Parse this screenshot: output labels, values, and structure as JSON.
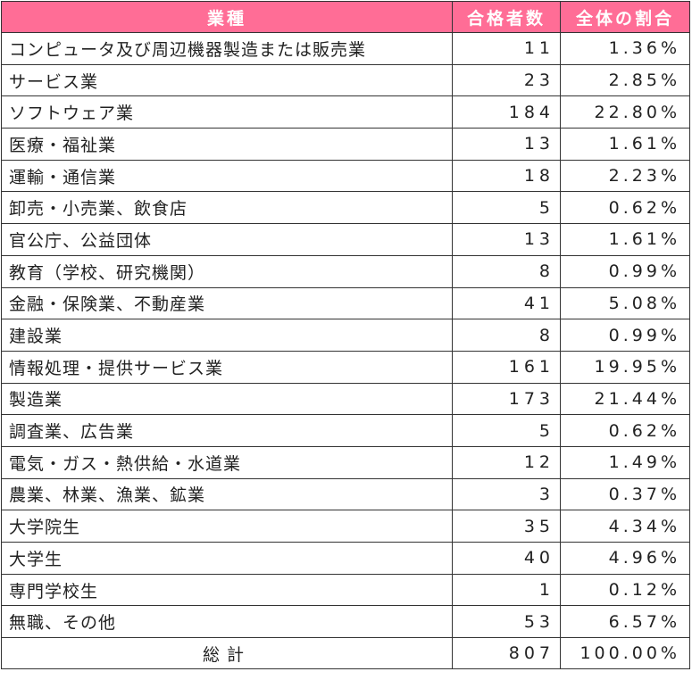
{
  "colors": {
    "header_bg": "#ff6d96",
    "header_text": "#ffffff",
    "border": "#333333"
  },
  "table": {
    "headers": {
      "industry": "業種",
      "count": "合格者数",
      "ratio": "全体の割合"
    },
    "rows": [
      {
        "industry": "コンピュータ及び周辺機器製造または販売業",
        "count": "11",
        "ratio": "1.36%"
      },
      {
        "industry": "サービス業",
        "count": "23",
        "ratio": "2.85%"
      },
      {
        "industry": "ソフトウェア業",
        "count": "184",
        "ratio": "22.80%"
      },
      {
        "industry": "医療・福祉業",
        "count": "13",
        "ratio": "1.61%"
      },
      {
        "industry": "運輸・通信業",
        "count": "18",
        "ratio": "2.23%"
      },
      {
        "industry": "卸売・小売業、飲食店",
        "count": "5",
        "ratio": "0.62%"
      },
      {
        "industry": "官公庁、公益団体",
        "count": "13",
        "ratio": "1.61%"
      },
      {
        "industry": "教育（学校、研究機関）",
        "count": "8",
        "ratio": "0.99%"
      },
      {
        "industry": "金融・保険業、不動産業",
        "count": "41",
        "ratio": "5.08%"
      },
      {
        "industry": "建設業",
        "count": "8",
        "ratio": "0.99%"
      },
      {
        "industry": "情報処理・提供サービス業",
        "count": "161",
        "ratio": "19.95%"
      },
      {
        "industry": "製造業",
        "count": "173",
        "ratio": "21.44%"
      },
      {
        "industry": "調査業、広告業",
        "count": "5",
        "ratio": "0.62%"
      },
      {
        "industry": "電気・ガス・熱供給・水道業",
        "count": "12",
        "ratio": "1.49%"
      },
      {
        "industry": "農業、林業、漁業、鉱業",
        "count": "3",
        "ratio": "0.37%"
      },
      {
        "industry": "大学院生",
        "count": "35",
        "ratio": "4.34%"
      },
      {
        "industry": "大学生",
        "count": "40",
        "ratio": "4.96%"
      },
      {
        "industry": "専門学校生",
        "count": "1",
        "ratio": "0.12%"
      },
      {
        "industry": "無職、その他",
        "count": "53",
        "ratio": "6.57%"
      }
    ],
    "total": {
      "label": "総計",
      "count": "807",
      "ratio": "100.00%"
    }
  }
}
